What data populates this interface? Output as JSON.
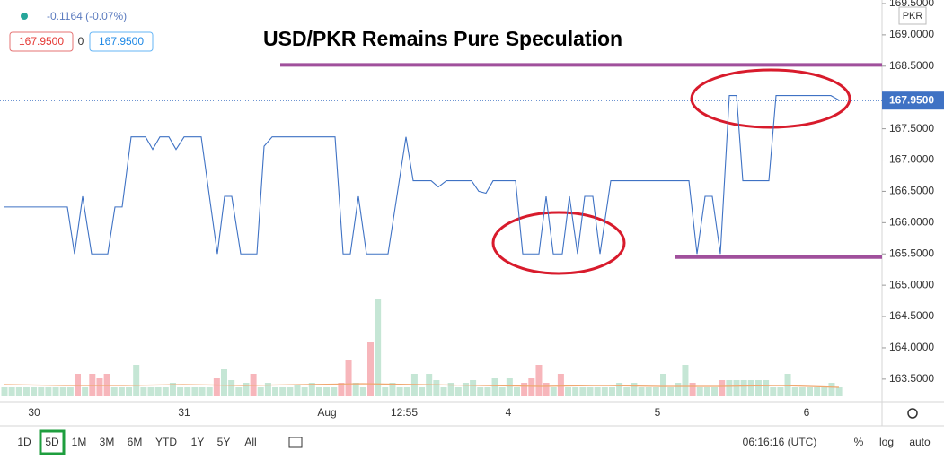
{
  "header": {
    "change": "-0.1164 (-0.07%)",
    "sell": "167.9500",
    "spread": "0",
    "buy": "167.9500"
  },
  "toolbar": {
    "ranges": [
      "1D",
      "5D",
      "1M",
      "3M",
      "6M",
      "YTD",
      "1Y",
      "5Y",
      "All"
    ],
    "active_range_index": 1,
    "time": "06:16:16 (UTC)",
    "options": [
      "%",
      "log",
      "auto"
    ]
  },
  "chart_data": {
    "type": "line",
    "title": "USD/PKR Remains Pure Speculation",
    "currency": "PKR",
    "xlim": [
      0,
      982
    ],
    "ylim": [
      163.14,
      169.557
    ],
    "yticks": [
      {
        "value": 163.5,
        "label": "163.5000"
      },
      {
        "value": 164,
        "label": "164.0000"
      },
      {
        "value": 164.5,
        "label": "164.5000"
      },
      {
        "value": 165,
        "label": "165.0000"
      },
      {
        "value": 165.5,
        "label": "165.5000"
      },
      {
        "value": 166,
        "label": "166.0000"
      },
      {
        "value": 166.5,
        "label": "166.5000"
      },
      {
        "value": 167,
        "label": "167.0000"
      },
      {
        "value": 167.5,
        "label": "167.5000"
      },
      {
        "value": 168,
        "label": "168.0000"
      },
      {
        "value": 168.5,
        "label": "168.5000"
      },
      {
        "value": 169,
        "label": "169.0000"
      },
      {
        "value": 169.5,
        "label": "169.5000"
      }
    ],
    "xticks": [
      {
        "value": 38,
        "label": "30"
      },
      {
        "value": 205,
        "label": "31"
      },
      {
        "value": 364,
        "label": "Aug"
      },
      {
        "value": 450,
        "label": "12:55"
      },
      {
        "value": 566,
        "label": "4"
      },
      {
        "value": 732,
        "label": "5"
      },
      {
        "value": 898,
        "label": "6"
      }
    ],
    "series": [
      {
        "color": "#3f72c4",
        "x": [
          5,
          75,
          83,
          92,
          102,
          120,
          128,
          136,
          146,
          162,
          170,
          178,
          188,
          196,
          205,
          224,
          242,
          250,
          258,
          268,
          286,
          294,
          303,
          373,
          382,
          390,
          399,
          408,
          432,
          452,
          460,
          480,
          488,
          497,
          525,
          533,
          541,
          549,
          574,
          582,
          600,
          608,
          616,
          626,
          634,
          643,
          651,
          660,
          668,
          680,
          767,
          776,
          785,
          793,
          802,
          812,
          820,
          827,
          856,
          864,
          925,
          935
        ],
        "values": [
          166.25,
          166.25,
          165.5,
          166.42,
          165.5,
          165.5,
          166.25,
          166.25,
          167.37,
          167.37,
          167.17,
          167.37,
          167.37,
          167.17,
          167.37,
          167.37,
          165.5,
          166.42,
          166.42,
          165.5,
          165.5,
          167.22,
          167.37,
          167.37,
          165.5,
          165.5,
          166.42,
          165.5,
          165.5,
          167.37,
          166.67,
          166.67,
          166.57,
          166.67,
          166.67,
          166.5,
          166.47,
          166.67,
          166.67,
          165.5,
          165.5,
          166.42,
          165.5,
          165.5,
          166.42,
          165.5,
          166.42,
          166.42,
          165.5,
          166.67,
          166.67,
          165.5,
          166.42,
          166.42,
          165.5,
          168.03,
          168.03,
          166.67,
          166.67,
          168.03,
          168.03,
          167.95
        ]
      }
    ],
    "last_price": {
      "value": 167.95,
      "label": "167.9500"
    },
    "levels": [
      {
        "value": 168.52,
        "x": [
          312,
          982
        ],
        "color": "#a0509c"
      },
      {
        "value": 165.45,
        "x": [
          752,
          982
        ],
        "color": "#a0509c"
      }
    ],
    "volume": {
      "ylim": [
        0,
        120
      ],
      "values": [
        10,
        10,
        10,
        10,
        10,
        10,
        10,
        10,
        10,
        10,
        25,
        10,
        25,
        20,
        25,
        10,
        10,
        10,
        35,
        10,
        10,
        10,
        10,
        15,
        10,
        10,
        10,
        10,
        10,
        20,
        30,
        18,
        10,
        15,
        25,
        10,
        15,
        10,
        10,
        10,
        12,
        10,
        15,
        10,
        10,
        10,
        15,
        40,
        15,
        10,
        60,
        108,
        10,
        15,
        10,
        10,
        25,
        10,
        25,
        18,
        10,
        15,
        10,
        15,
        18,
        10,
        10,
        20,
        10,
        20,
        10,
        15,
        20,
        35,
        15,
        10,
        25,
        10,
        10,
        10,
        10,
        10,
        10,
        10,
        15,
        10,
        15,
        10,
        10,
        10,
        25,
        10,
        15,
        35,
        15,
        10,
        10,
        10,
        18,
        18,
        18,
        18,
        18,
        18,
        18,
        10,
        10,
        25,
        10,
        10,
        10,
        10,
        10,
        15,
        10
      ],
      "colors": [
        "#c5e6d5",
        "#c5e6d5",
        "#c5e6d5",
        "#c5e6d5",
        "#c5e6d5",
        "#c5e6d5",
        "#c5e6d5",
        "#c5e6d5",
        "#c5e6d5",
        "#c5e6d5",
        "#f7b6bb",
        "#c5e6d5",
        "#f7b6bb",
        "#f7b6bb",
        "#f7b6bb",
        "#c5e6d5",
        "#c5e6d5",
        "#c5e6d5",
        "#c5e6d5",
        "#c5e6d5",
        "#c5e6d5",
        "#c5e6d5",
        "#c5e6d5",
        "#c5e6d5",
        "#c5e6d5",
        "#c5e6d5",
        "#c5e6d5",
        "#c5e6d5",
        "#c5e6d5",
        "#f7b6bb",
        "#c5e6d5",
        "#c5e6d5",
        "#c5e6d5",
        "#c5e6d5",
        "#f7b6bb",
        "#c5e6d5",
        "#c5e6d5",
        "#c5e6d5",
        "#c5e6d5",
        "#c5e6d5",
        "#c5e6d5",
        "#c5e6d5",
        "#c5e6d5",
        "#c5e6d5",
        "#c5e6d5",
        "#c5e6d5",
        "#f7b6bb",
        "#f7b6bb",
        "#c5e6d5",
        "#c5e6d5",
        "#f7b6bb",
        "#c5e6d5",
        "#c5e6d5",
        "#c5e6d5",
        "#c5e6d5",
        "#c5e6d5",
        "#c5e6d5",
        "#c5e6d5",
        "#c5e6d5",
        "#c5e6d5",
        "#c5e6d5",
        "#c5e6d5",
        "#c5e6d5",
        "#c5e6d5",
        "#c5e6d5",
        "#c5e6d5",
        "#c5e6d5",
        "#c5e6d5",
        "#c5e6d5",
        "#c5e6d5",
        "#c5e6d5",
        "#f7b6bb",
        "#f7b6bb",
        "#f7b6bb",
        "#f7b6bb",
        "#c5e6d5",
        "#f7b6bb",
        "#c5e6d5",
        "#c5e6d5",
        "#c5e6d5",
        "#c5e6d5",
        "#c5e6d5",
        "#c5e6d5",
        "#c5e6d5",
        "#c5e6d5",
        "#c5e6d5",
        "#c5e6d5",
        "#c5e6d5",
        "#c5e6d5",
        "#c5e6d5",
        "#c5e6d5",
        "#c5e6d5",
        "#c5e6d5",
        "#c5e6d5",
        "#f7b6bb",
        "#c5e6d5",
        "#c5e6d5",
        "#c5e6d5",
        "#f7b6bb",
        "#c5e6d5",
        "#c5e6d5",
        "#c5e6d5",
        "#c5e6d5",
        "#c5e6d5",
        "#c5e6d5",
        "#c5e6d5",
        "#c5e6d5",
        "#c5e6d5",
        "#c5e6d5",
        "#c5e6d5",
        "#c5e6d5",
        "#c5e6d5",
        "#c5e6d5",
        "#c5e6d5",
        "#c5e6d5"
      ],
      "ma": [
        13,
        12,
        12,
        13,
        12,
        13,
        14,
        13,
        12,
        11,
        12,
        11,
        11,
        12,
        10
      ],
      "ma_color": "#f0a870"
    }
  }
}
